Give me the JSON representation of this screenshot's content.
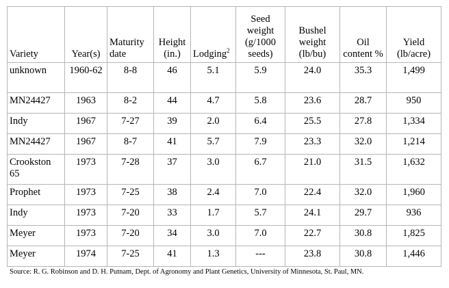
{
  "headers": [
    {
      "text": "Variety",
      "sup": "",
      "align": "l"
    },
    {
      "text": "Year(s)",
      "sup": "",
      "align": "c"
    },
    {
      "text": "Maturity date",
      "sup": "",
      "align": "l"
    },
    {
      "text": "Height (in.)",
      "sup": "",
      "align": "c"
    },
    {
      "text": "Lodging",
      "sup": "2",
      "align": "l"
    },
    {
      "text": "Seed weight (g/1000 seeds)",
      "sup": "",
      "align": "c"
    },
    {
      "text": "Bushel weight (lb/bu)",
      "sup": "",
      "align": "c"
    },
    {
      "text": "Oil content %",
      "sup": "",
      "align": "c"
    },
    {
      "text": "Yield (lb/acre)",
      "sup": "",
      "align": "c"
    }
  ],
  "rows": [
    [
      "unknown",
      "1960-62",
      "8-8",
      "46",
      "5.1",
      "5.9",
      "24.0",
      "35.3",
      "1,499"
    ],
    [
      "MN24427",
      "1963",
      "8-2",
      "44",
      "4.7",
      "5.8",
      "23.6",
      "28.7",
      "950"
    ],
    [
      "Indy",
      "1967",
      "7-27",
      "39",
      "2.0",
      "6.4",
      "25.5",
      "27.8",
      "1,334"
    ],
    [
      "MN24427",
      "1967",
      "8-7",
      "41",
      "5.7",
      "7.9",
      "23.3",
      "32.0",
      "1,214"
    ],
    [
      "Crookston 65",
      "1973",
      "7-28",
      "37",
      "3.0",
      "6.7",
      "21.0",
      "31.5",
      "1,632"
    ],
    [
      "Prophet",
      "1973",
      "7-25",
      "38",
      "2.4",
      "7.0",
      "22.4",
      "32.0",
      "1,960"
    ],
    [
      "Indy",
      "1973",
      "7-20",
      "33",
      "1.7",
      "5.7",
      "24.1",
      "29.7",
      "936"
    ],
    [
      "Meyer",
      "1973",
      "7-20",
      "34",
      "3.0",
      "7.0",
      "22.7",
      "30.8",
      "1,825"
    ],
    [
      "Meyer",
      "1974",
      "7-25",
      "41",
      "1.3",
      "---",
      "23.8",
      "30.8",
      "1,446"
    ]
  ],
  "source": "Source: R. G. Robinson and D. H. Putnam, Dept. of Agronomy and Plant Genetics, University of Minnesota, St. Paul, MN."
}
